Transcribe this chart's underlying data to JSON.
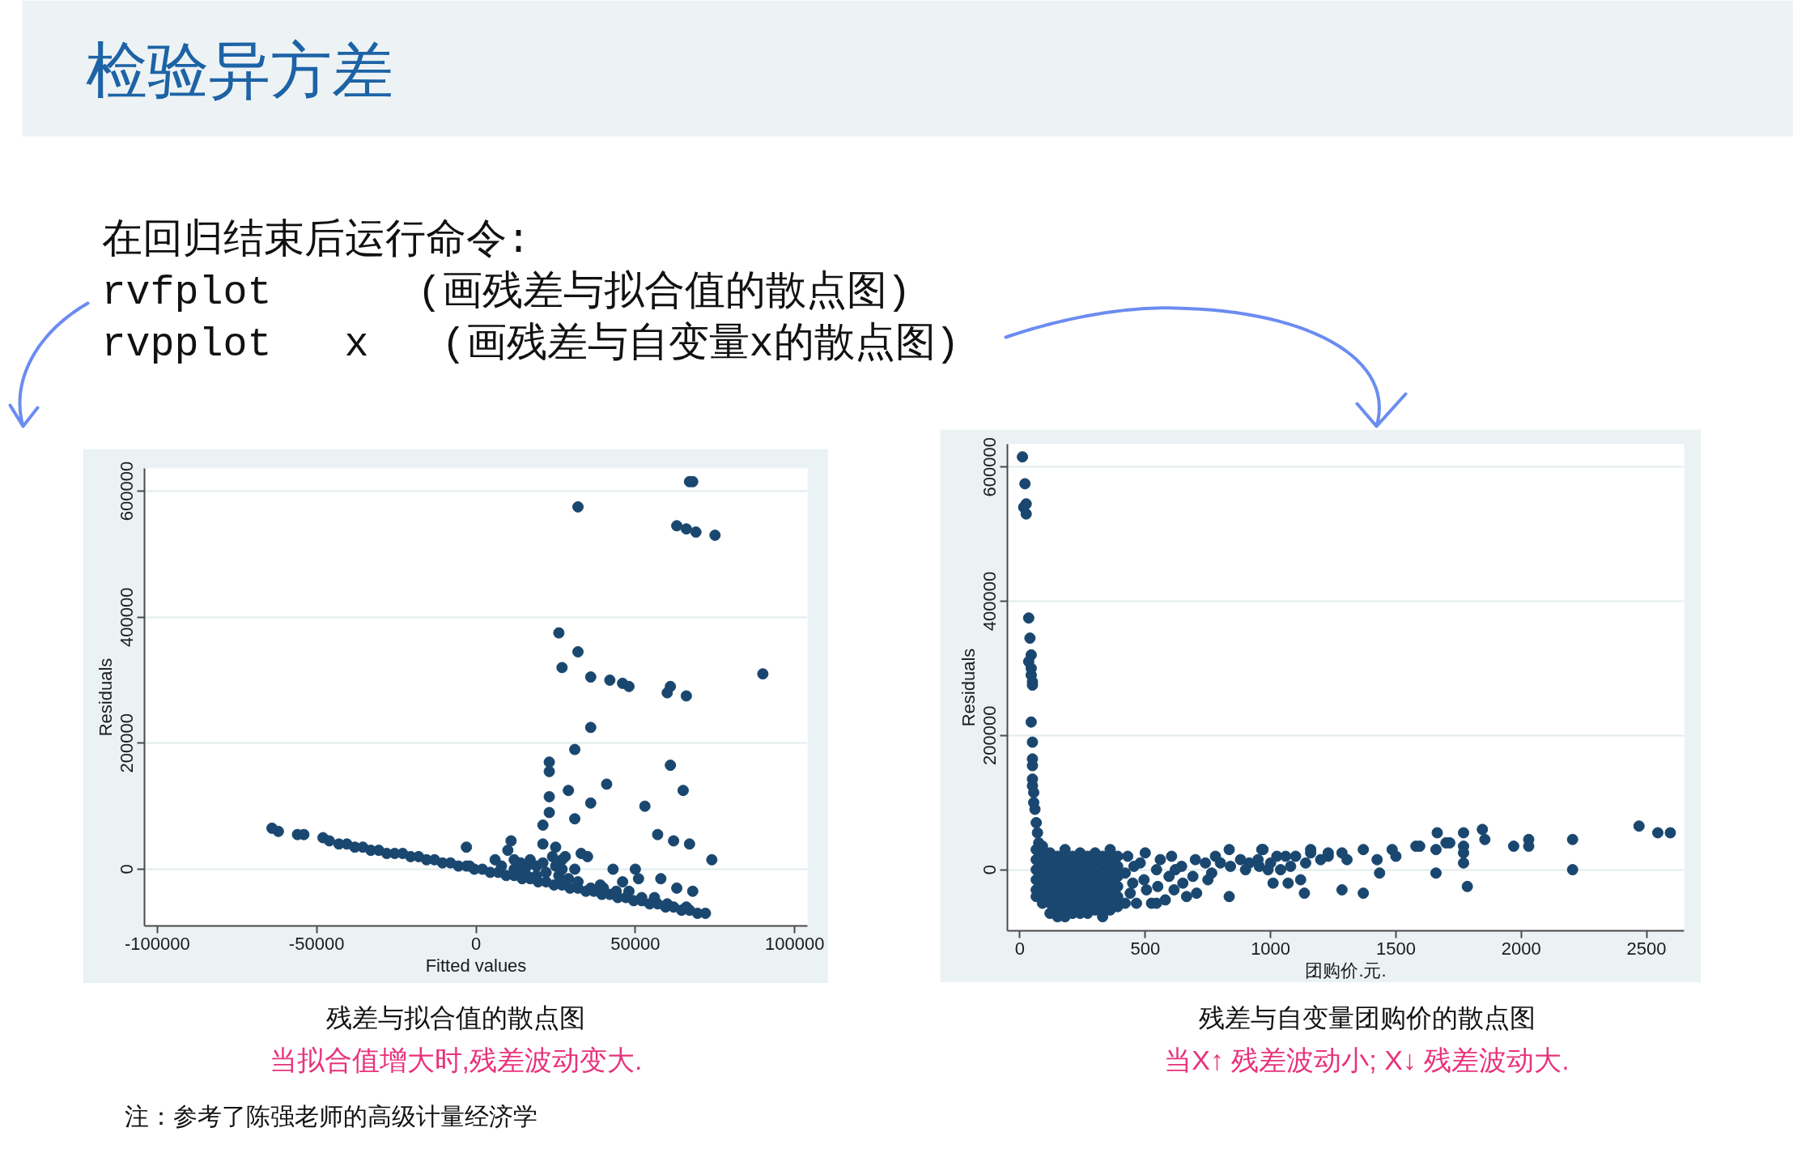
{
  "chart_data": [
    {
      "type": "other",
      "title": "检验异方差",
      "annotations": [
        "在回归结束后运行命令:",
        "rvfplot      (画残差与拟合值的散点图)",
        "rvpplot   x   (画残差与自变量x的散点图)"
      ]
    },
    {
      "type": "scatter",
      "title": "残差与拟合值的散点图",
      "xlabel": "Fitted values",
      "ylabel": "Residuals",
      "annotations": [
        "当拟合值增大时,残差波动变大."
      ],
      "color": "#1a476f",
      "marker": "circle",
      "grid": "y",
      "xlim": [
        -104000,
        104000
      ],
      "ylim": [
        -90000,
        636000
      ],
      "xticks": [
        -100000,
        -50000,
        0,
        50000,
        100000
      ],
      "yticks": [
        0,
        200000,
        400000,
        600000
      ],
      "x": [
        -64000,
        -62000,
        -56000,
        -54000,
        -48000,
        -46000,
        -43000,
        -40500,
        -38000,
        -35500,
        -33000,
        -30500,
        -28000,
        -25500,
        -23000,
        -20500,
        -18000,
        -15500,
        -13000,
        -10500,
        -8000,
        -5500,
        -3000,
        -500,
        2000,
        4500,
        7000,
        9500,
        12000,
        14500,
        17000,
        19500,
        22000,
        24500,
        27000,
        29500,
        32000,
        34500,
        37000,
        39500,
        42000,
        44500,
        47000,
        49500,
        52000,
        54500,
        57000,
        59500,
        62000,
        64500,
        67000,
        69500,
        72000,
        -3000,
        -2000,
        6000,
        10000,
        11000,
        12000,
        8000,
        12000,
        14000,
        16000,
        17000,
        19000,
        19000,
        21000,
        21000,
        21000,
        22000,
        23000,
        23000,
        23000,
        23000,
        25000,
        25000,
        26000,
        27000,
        28000,
        29000,
        29000,
        31000,
        31000,
        31000,
        32000,
        33000,
        35000,
        36000,
        36000,
        39000,
        41000,
        43000,
        46000,
        48000,
        50000,
        51000,
        53000,
        56000,
        57000,
        58000,
        62000,
        63000,
        67000,
        68000,
        74000,
        61000,
        65000,
        14000,
        16000,
        24000,
        27000,
        36000,
        40000,
        44000,
        52000,
        60000,
        66000,
        67000,
        68000,
        32000,
        63000,
        66000,
        69000,
        75000,
        26000,
        32000,
        27000,
        36000,
        42000,
        46000,
        48000,
        61000,
        60000,
        66000,
        90000
      ],
      "values": [
        65000,
        60000,
        55000,
        55000,
        50000,
        45000,
        40000,
        40000,
        35000,
        35000,
        30000,
        30000,
        25000,
        25000,
        25000,
        20000,
        20000,
        15000,
        15000,
        10000,
        10000,
        5000,
        5000,
        0,
        0,
        -5000,
        -5000,
        -10000,
        -10000,
        -15000,
        -15000,
        -20000,
        -20000,
        -25000,
        -25000,
        -30000,
        -30000,
        -35000,
        -35000,
        -40000,
        -40000,
        -45000,
        -45000,
        -50000,
        -50000,
        -55000,
        -55000,
        -60000,
        -60000,
        -65000,
        -65000,
        -70000,
        -70000,
        35000,
        5000,
        15000,
        30000,
        45000,
        15000,
        5000,
        0,
        -5000,
        5000,
        15000,
        5000,
        -10000,
        40000,
        70000,
        10000,
        -5000,
        90000,
        115000,
        155000,
        170000,
        35000,
        5000,
        -10000,
        15000,
        20000,
        125000,
        -15000,
        0,
        190000,
        80000,
        -20000,
        25000,
        20000,
        225000,
        105000,
        -25000,
        135000,
        0,
        -20000,
        -35000,
        0,
        -15000,
        100000,
        -45000,
        55000,
        -15000,
        45000,
        -30000,
        40000,
        -35000,
        15000,
        165000,
        125000,
        10000,
        -10000,
        20000,
        0,
        -30000,
        -30000,
        -35000,
        -45000,
        -55000,
        -60000,
        615000,
        615000,
        575000,
        545000,
        540000,
        535000,
        530000,
        375000,
        345000,
        320000,
        305000,
        300000,
        295000,
        290000,
        290000,
        280000,
        275000,
        310000
      ]
    },
    {
      "type": "scatter",
      "title": "残差与自变量团购价的散点图",
      "xlabel": "团购价.元.",
      "ylabel": "Residuals",
      "annotations": [
        "当X↑ 残差波动小; X↓ 残差波动大."
      ],
      "color": "#1a476f",
      "marker": "circle",
      "grid": "y",
      "xlim": [
        -50,
        2650
      ],
      "ylim": [
        -91000,
        634000
      ],
      "xticks": [
        0,
        500,
        1000,
        1500,
        2000,
        2500
      ],
      "yticks": [
        0,
        200000,
        400000,
        600000
      ],
      "x": [
        10,
        20,
        25,
        15,
        25,
        35,
        40,
        45,
        35,
        45,
        45,
        50,
        50,
        45,
        50,
        50,
        50,
        50,
        50,
        55,
        55,
        60,
        65,
        70,
        75,
        90,
        65,
        65,
        65,
        65,
        65,
        65,
        90,
        90,
        90,
        90,
        90,
        90,
        120,
        120,
        120,
        120,
        120,
        120,
        120,
        150,
        150,
        150,
        150,
        150,
        150,
        150,
        180,
        180,
        180,
        180,
        180,
        180,
        180,
        180,
        210,
        210,
        210,
        210,
        210,
        210,
        210,
        240,
        240,
        240,
        240,
        240,
        240,
        240,
        270,
        270,
        270,
        270,
        270,
        270,
        270,
        300,
        300,
        300,
        300,
        300,
        300,
        300,
        330,
        330,
        330,
        330,
        330,
        330,
        330,
        360,
        360,
        360,
        360,
        360,
        360,
        360,
        390,
        390,
        390,
        390,
        390,
        390,
        430,
        500,
        605,
        780,
        835,
        970,
        455,
        545,
        645,
        740,
        840,
        915,
        955,
        990,
        765,
        690,
        595,
        495,
        420,
        440,
        465,
        525,
        545,
        580,
        615,
        665,
        705,
        750,
        835,
        505,
        550,
        650,
        1010,
        1070,
        1120,
        1135,
        1025,
        1060,
        1100,
        1160,
        1230,
        420,
        450,
        480,
        560,
        620,
        700,
        800,
        880,
        900,
        950,
        1000,
        1040,
        1080,
        1140,
        1200,
        965,
        1160,
        1230,
        1285,
        1305,
        1370,
        1425,
        1485,
        1500,
        1580,
        1595,
        1665,
        1660,
        1700,
        1715,
        1770,
        1770,
        1770,
        1770,
        1845,
        1855,
        1970,
        2030,
        2030,
        2205,
        2205,
        2470,
        2545,
        2595,
        1660,
        1435,
        1285,
        1370,
        1785
      ],
      "values": [
        615000,
        575000,
        545000,
        540000,
        530000,
        375000,
        345000,
        320000,
        310000,
        300000,
        290000,
        280000,
        275000,
        220000,
        190000,
        165000,
        155000,
        135000,
        125000,
        115000,
        100000,
        90000,
        70000,
        55000,
        40000,
        35000,
        30000,
        15000,
        0,
        -15000,
        -30000,
        -40000,
        20000,
        5000,
        -10000,
        -25000,
        -40000,
        -50000,
        25000,
        10000,
        -5000,
        -20000,
        -35000,
        -50000,
        -65000,
        20000,
        5000,
        -10000,
        -25000,
        -40000,
        -55000,
        -70000,
        30000,
        15000,
        0,
        -15000,
        -30000,
        -45000,
        -60000,
        -70000,
        20000,
        5000,
        -10000,
        -25000,
        -40000,
        -55000,
        -65000,
        25000,
        10000,
        -5000,
        -20000,
        -35000,
        -50000,
        -65000,
        20000,
        5000,
        -10000,
        -25000,
        -40000,
        -55000,
        -65000,
        25000,
        10000,
        -5000,
        -20000,
        -35000,
        -50000,
        -60000,
        20000,
        5000,
        -10000,
        -25000,
        -40000,
        -55000,
        -70000,
        30000,
        15000,
        0,
        -15000,
        -30000,
        -45000,
        -60000,
        20000,
        5000,
        -10000,
        -25000,
        -40000,
        -55000,
        20000,
        25000,
        20000,
        20000,
        30000,
        30000,
        5000,
        0,
        5000,
        10000,
        5000,
        10000,
        5000,
        0,
        -5000,
        -10000,
        -10000,
        -15000,
        -5000,
        -35000,
        -50000,
        -50000,
        -50000,
        -45000,
        -30000,
        -40000,
        -35000,
        -15000,
        -40000,
        -30000,
        -25000,
        -20000,
        -20000,
        -20000,
        -15000,
        -35000,
        20000,
        20000,
        20000,
        30000,
        25000,
        -50000,
        -20000,
        10000,
        15000,
        0,
        15000,
        10000,
        15000,
        0,
        15000,
        10000,
        0,
        5000,
        10000,
        15000,
        30000,
        25000,
        20000,
        25000,
        15000,
        30000,
        15000,
        30000,
        20000,
        35000,
        35000,
        55000,
        30000,
        40000,
        40000,
        55000,
        35000,
        25000,
        10000,
        60000,
        45000,
        35000,
        45000,
        35000,
        45000,
        0,
        65000,
        55000,
        55000,
        -5000,
        -5000,
        -30000,
        -35000,
        -25000
      ]
    },
    {
      "type": "other",
      "annotations": [
        "注：参考了陈强老师的高级计量经济学"
      ]
    }
  ]
}
